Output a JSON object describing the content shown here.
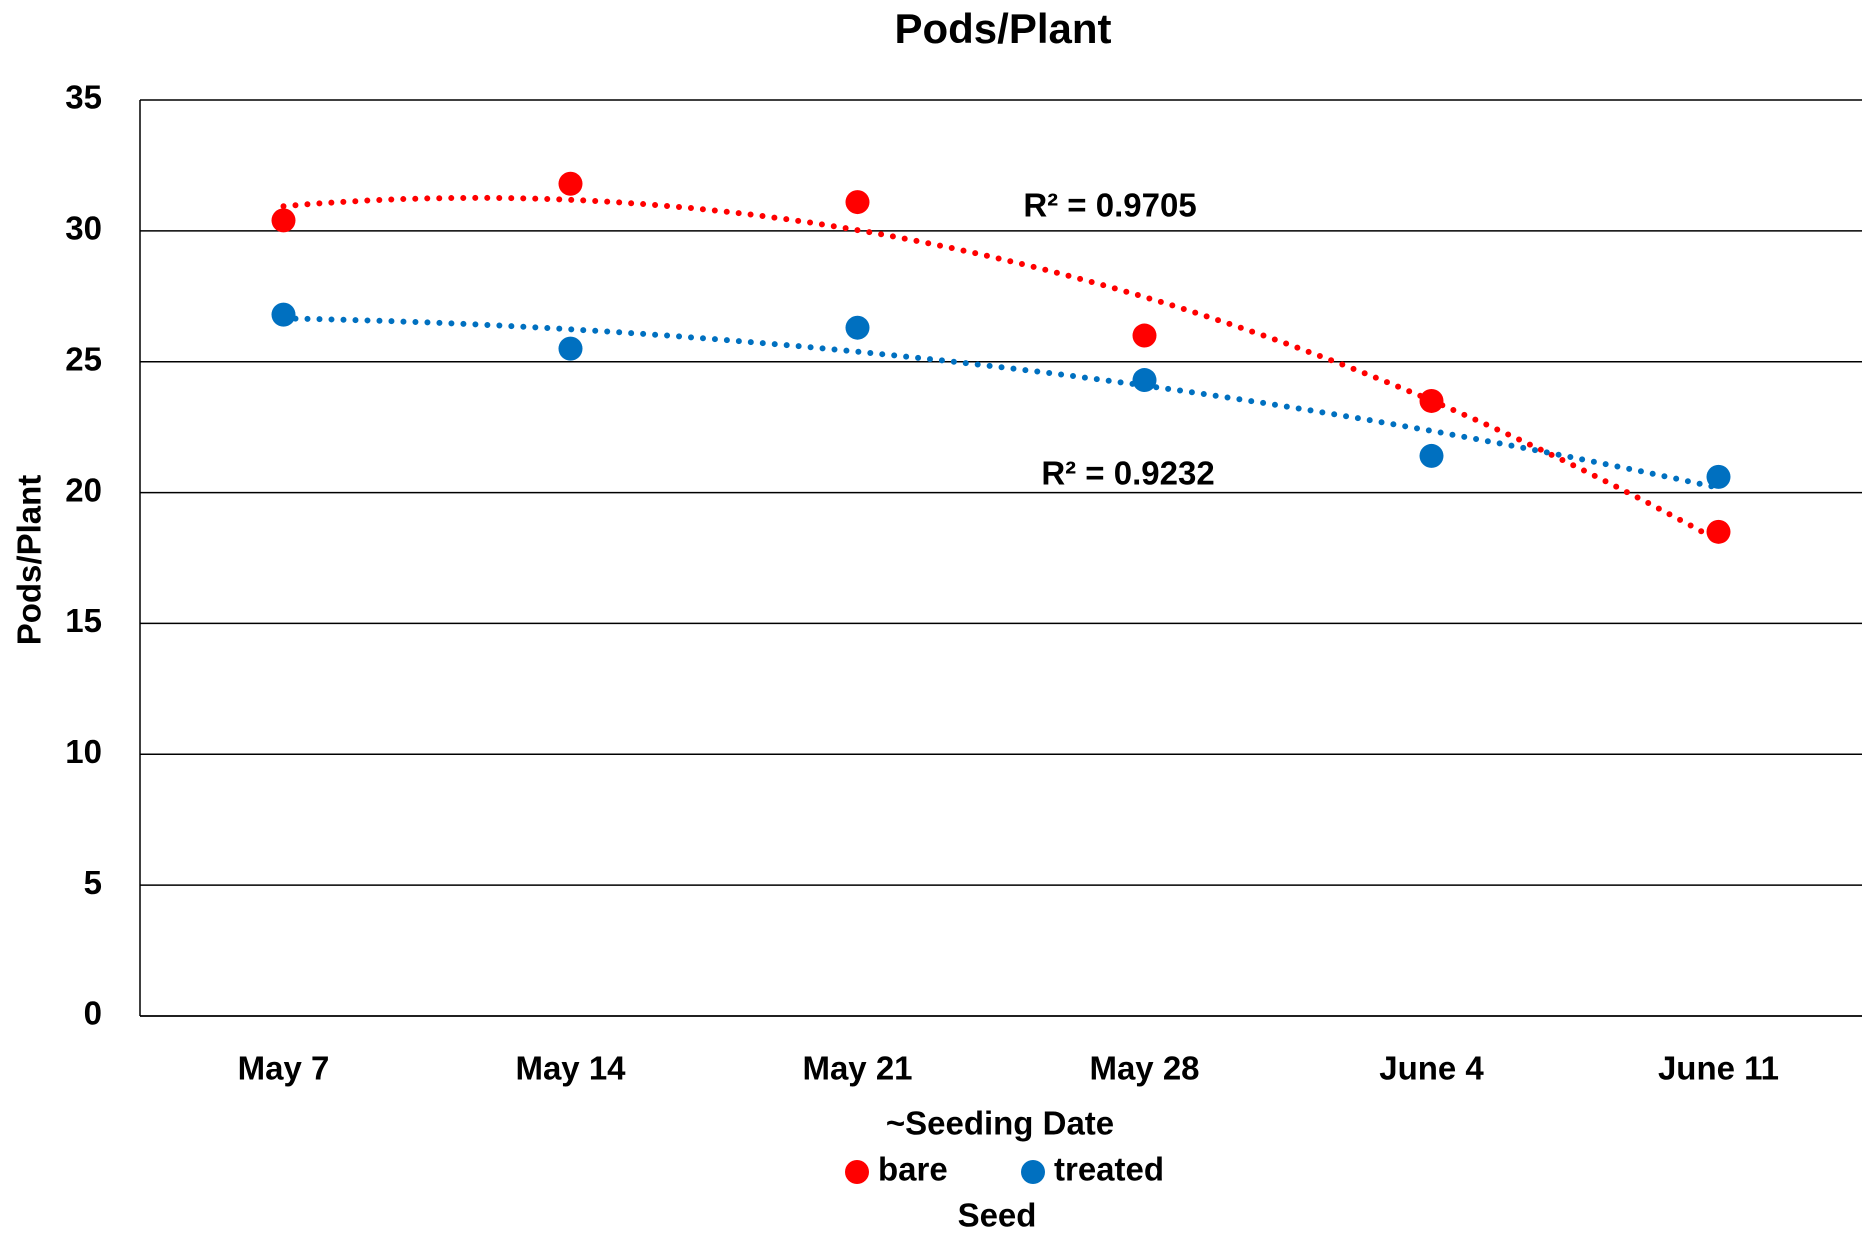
{
  "chart_data": {
    "type": "scatter",
    "title": "Pods/Plant",
    "x_label": "~Seeding Date",
    "y_label": "Pods/Plant",
    "legend_title": "Seed",
    "legend_position": "bottom",
    "grid": true,
    "categories": [
      "May 7",
      "May 14",
      "May 21",
      "May 28",
      "June 4",
      "June 11"
    ],
    "ylim": [
      0,
      35
    ],
    "yticks": [
      0,
      5,
      10,
      15,
      20,
      25,
      30,
      35
    ],
    "series": [
      {
        "name": "bare",
        "color": "#ff0000",
        "values": [
          30.4,
          31.8,
          31.1,
          26.0,
          23.5,
          18.5
        ],
        "trendline": {
          "type": "polynomial",
          "order": 2,
          "label": "R² = 0.9705"
        }
      },
      {
        "name": "treated",
        "color": "#0070c0",
        "values": [
          26.8,
          25.5,
          26.3,
          24.3,
          21.4,
          20.6
        ],
        "trendline": {
          "type": "polynomial",
          "order": 2,
          "label": "R² = 0.9232"
        }
      }
    ]
  }
}
